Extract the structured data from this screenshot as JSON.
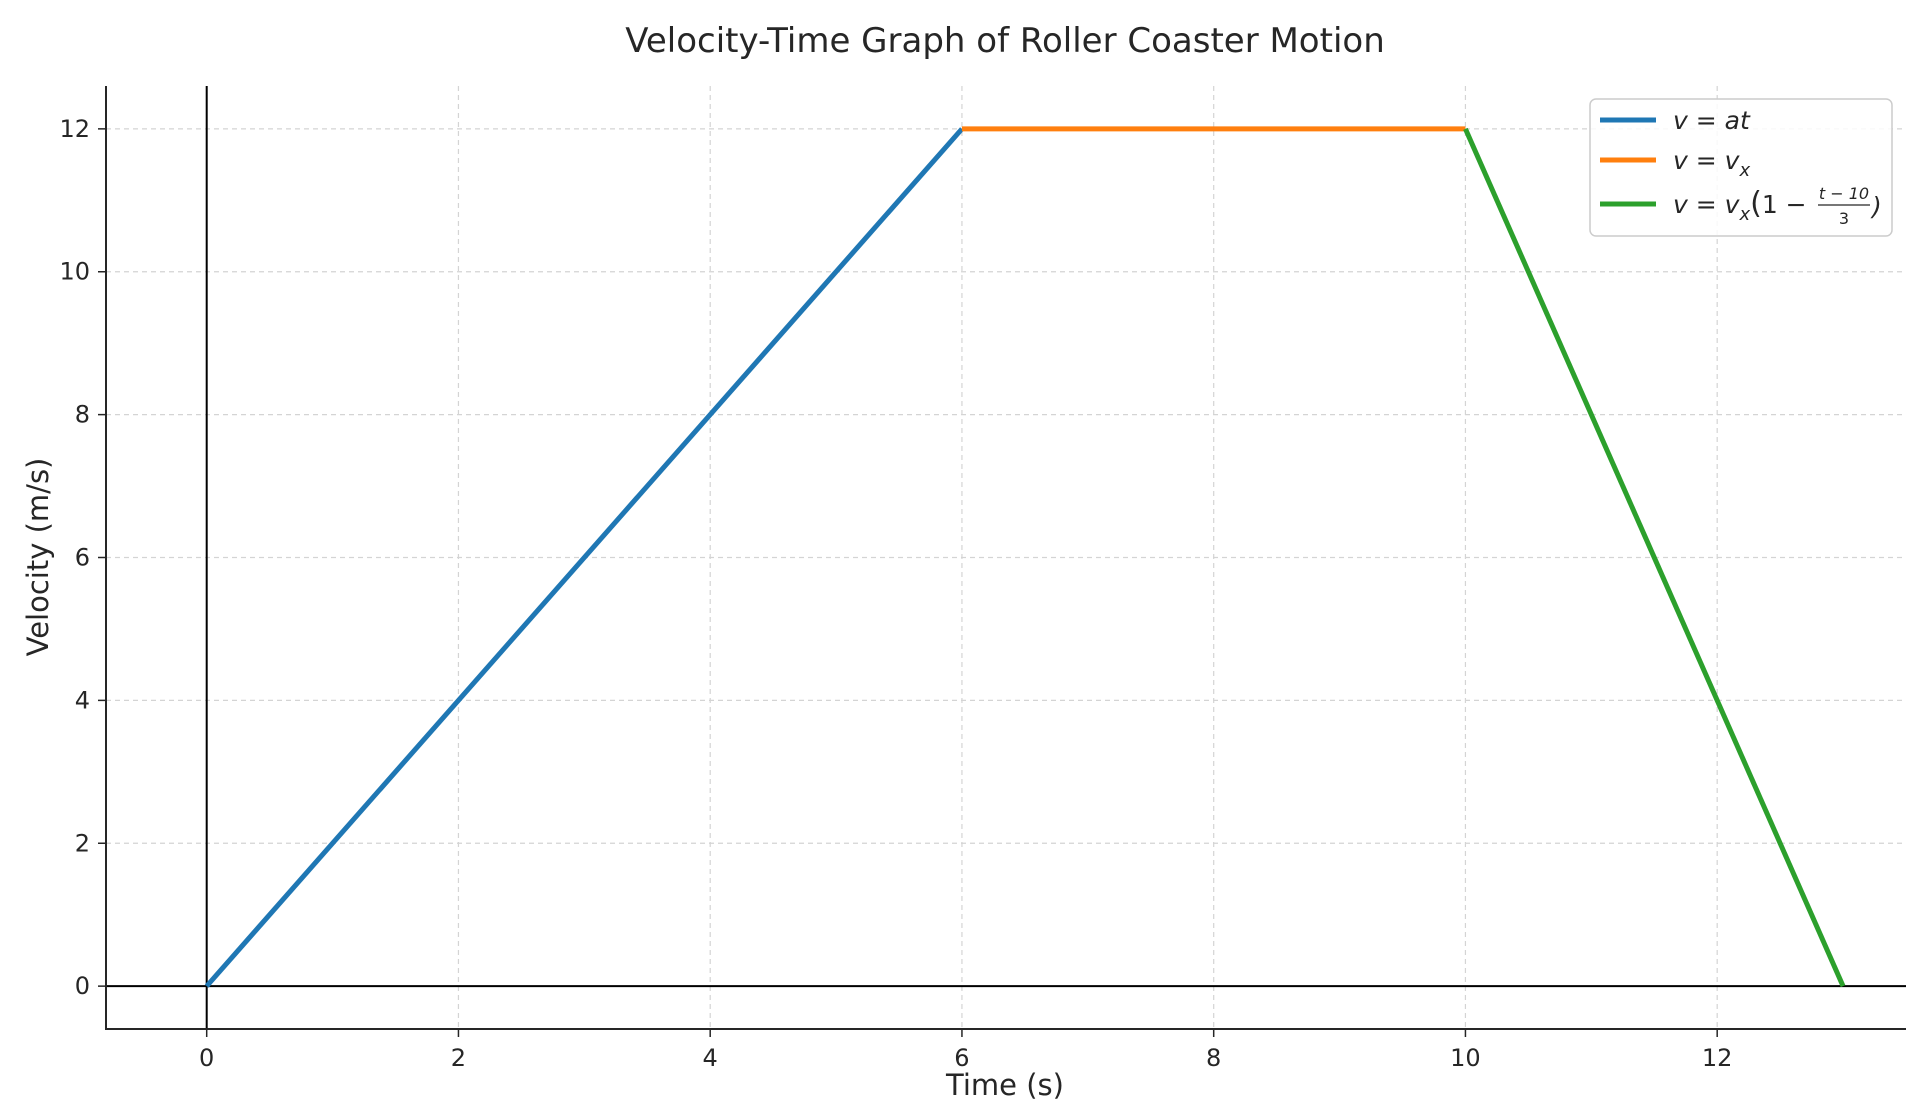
{
  "chart_data": {
    "type": "line",
    "title": "Velocity-Time Graph of Roller Coaster Motion",
    "xlabel": "Time (s)",
    "ylabel": "Velocity (m/s)",
    "xlim": [
      -0.8,
      13.5
    ],
    "ylim": [
      -0.6,
      12.6
    ],
    "xticks": [
      0,
      2,
      4,
      6,
      8,
      10,
      12
    ],
    "yticks": [
      0,
      2,
      4,
      6,
      8,
      10,
      12
    ],
    "grid": true,
    "legend_position": "top-right",
    "series": [
      {
        "name": "v = at",
        "color": "#1f77b4",
        "x": [
          0,
          6
        ],
        "y": [
          0,
          12
        ]
      },
      {
        "name": "v = v_x",
        "color": "#ff7f0e",
        "x": [
          6,
          10
        ],
        "y": [
          12,
          12
        ]
      },
      {
        "name": "v = v_x(1 − (t − 10)/3)",
        "color": "#2ca02c",
        "x": [
          10,
          13
        ],
        "y": [
          12,
          0
        ]
      }
    ]
  },
  "legend": {
    "items": [
      {
        "v": "v",
        "eq": " = ",
        "rhs_main": "at",
        "rhs_sub": ""
      },
      {
        "v": "v",
        "eq": " = ",
        "rhs_main": "v",
        "rhs_sub": "x"
      },
      {
        "v": "v",
        "eq": " = ",
        "rhs_main": "v",
        "rhs_sub": "x",
        "paren_open": "(",
        "one": "1 − ",
        "frac_num": "t − 10",
        "frac_den": "3",
        "paren_close": ")"
      }
    ]
  }
}
